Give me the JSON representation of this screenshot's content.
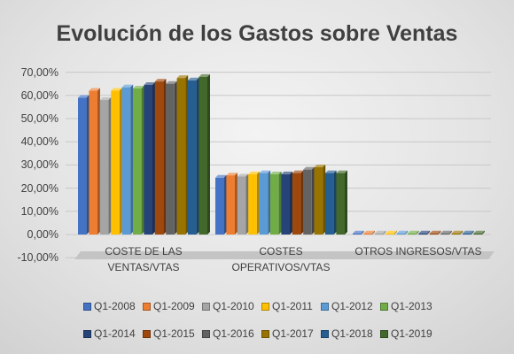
{
  "chart_data": {
    "type": "bar",
    "orientation": "vertical",
    "three_d": true,
    "title": "Evolución de los Gastos sobre Ventas",
    "categories": [
      "COSTE DE LAS VENTAS/VTAS",
      "COSTES OPERATIVOS/VTAS",
      "OTROS INGRESOS/VTAS"
    ],
    "ylim": [
      -10,
      70
    ],
    "y_ticks": [
      "70,00%",
      "60,00%",
      "50,00%",
      "40,00%",
      "30,00%",
      "20,00%",
      "10,00%",
      "0,00%",
      "-10,00%"
    ],
    "grid": true,
    "legend_position": "bottom",
    "series": [
      {
        "name": "Q1-2008",
        "color": "#4472C4",
        "values": [
          59.0,
          24.5,
          0.5
        ]
      },
      {
        "name": "Q1-2009",
        "color": "#ED7D31",
        "values": [
          62.0,
          25.5,
          0.5
        ]
      },
      {
        "name": "Q1-2010",
        "color": "#A5A5A5",
        "values": [
          58.0,
          25.0,
          0.5
        ]
      },
      {
        "name": "Q1-2011",
        "color": "#FFC000",
        "values": [
          62.0,
          26.0,
          0.5
        ]
      },
      {
        "name": "Q1-2012",
        "color": "#5B9BD5",
        "values": [
          63.5,
          26.5,
          0.5
        ]
      },
      {
        "name": "Q1-2013",
        "color": "#70AD47",
        "values": [
          63.0,
          26.0,
          0.5
        ]
      },
      {
        "name": "Q1-2014",
        "color": "#264478",
        "values": [
          64.5,
          26.0,
          0.5
        ]
      },
      {
        "name": "Q1-2015",
        "color": "#9E480E",
        "values": [
          66.0,
          26.5,
          0.5
        ]
      },
      {
        "name": "Q1-2016",
        "color": "#636363",
        "values": [
          65.0,
          28.0,
          0.5
        ]
      },
      {
        "name": "Q1-2017",
        "color": "#997300",
        "values": [
          67.5,
          29.0,
          0.5
        ]
      },
      {
        "name": "Q1-2018",
        "color": "#255E91",
        "values": [
          66.5,
          26.5,
          0.5
        ]
      },
      {
        "name": "Q1-2019",
        "color": "#43682B",
        "values": [
          68.0,
          26.5,
          0.5
        ]
      }
    ]
  }
}
